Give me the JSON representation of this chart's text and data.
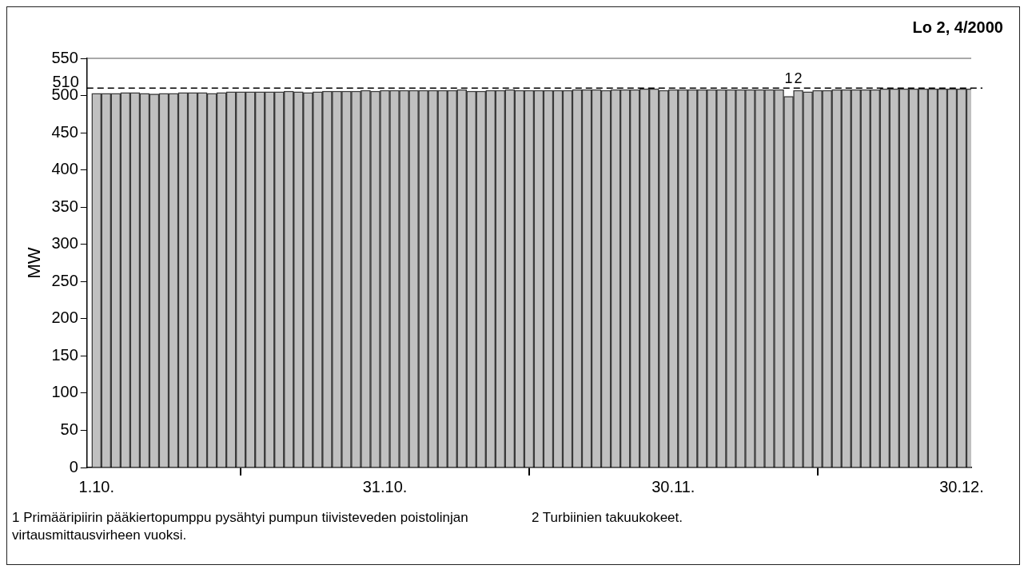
{
  "chart_data": {
    "type": "bar",
    "title": "Lo 2, 4/2000",
    "ylabel": "MW",
    "x": [
      "--10-01",
      "--10-02",
      "--10-03",
      "--10-04",
      "--10-05",
      "--10-06",
      "--10-07",
      "--10-08",
      "--10-09",
      "--10-10",
      "--10-11",
      "--10-12",
      "--10-13",
      "--10-14",
      "--10-15",
      "--10-16",
      "--10-17",
      "--10-18",
      "--10-19",
      "--10-20",
      "--10-21",
      "--10-22",
      "--10-23",
      "--10-24",
      "--10-25",
      "--10-26",
      "--10-27",
      "--10-28",
      "--10-29",
      "--10-30",
      "--10-31",
      "--11-01",
      "--11-02",
      "--11-03",
      "--11-04",
      "--11-05",
      "--11-06",
      "--11-07",
      "--11-08",
      "--11-09",
      "--11-10",
      "--11-11",
      "--11-12",
      "--11-13",
      "--11-14",
      "--11-15",
      "--11-16",
      "--11-17",
      "--11-18",
      "--11-19",
      "--11-20",
      "--11-21",
      "--11-22",
      "--11-23",
      "--11-24",
      "--11-25",
      "--11-26",
      "--11-27",
      "--11-28",
      "--11-29",
      "--11-30",
      "--12-01",
      "--12-02",
      "--12-03",
      "--12-04",
      "--12-05",
      "--12-06",
      "--12-07",
      "--12-08",
      "--12-09",
      "--12-10",
      "--12-11",
      "--12-12",
      "--12-13",
      "--12-14",
      "--12-15",
      "--12-16",
      "--12-17",
      "--12-18",
      "--12-19",
      "--12-20",
      "--12-21",
      "--12-22",
      "--12-23",
      "--12-24",
      "--12-25",
      "--12-26",
      "--12-27",
      "--12-28",
      "--12-29",
      "--12-30",
      "--12-31"
    ],
    "values": [
      503,
      503,
      503,
      504,
      504,
      503,
      502,
      503,
      503,
      504,
      504,
      504,
      503,
      504,
      505,
      505,
      505,
      505,
      505,
      505,
      506,
      505,
      504,
      505,
      506,
      506,
      506,
      506,
      507,
      506,
      507,
      507,
      507,
      507,
      507,
      507,
      507,
      507,
      508,
      506,
      506,
      507,
      507,
      508,
      507,
      507,
      507,
      507,
      507,
      507,
      508,
      508,
      508,
      507,
      508,
      508,
      508,
      509,
      509,
      507,
      508,
      508,
      508,
      508,
      508,
      508,
      508,
      508,
      508,
      508,
      508,
      508,
      499,
      507,
      505,
      507,
      507,
      508,
      508,
      508,
      508,
      508,
      509,
      509,
      509,
      509,
      509,
      509,
      509,
      509,
      509,
      509
    ],
    "color": "#c0c0c0",
    "xlim": [
      "--09-30",
      "--12-31"
    ],
    "xticks": [
      {
        "value": "--10-01",
        "label": "1.10."
      },
      {
        "value": "--10-31",
        "label": "31.10."
      },
      {
        "value": "--11-30",
        "label": "30.11."
      },
      {
        "value": "--12-30",
        "label": "30.12."
      }
    ],
    "ylim": [
      0,
      550
    ],
    "yticks": [
      0,
      50,
      100,
      150,
      200,
      250,
      300,
      350,
      400,
      450,
      500,
      550
    ],
    "ref_lines": [
      {
        "axis": "y",
        "value": 510,
        "label": "510",
        "line_style": "dashed",
        "color": "#000000"
      }
    ],
    "annotations": [
      {
        "text": "1",
        "x": "--12-12",
        "y": 512
      },
      {
        "text": "2",
        "x": "--12-13",
        "y": 512
      },
      "1   Primääripiirin pääkiertopumppu pysähtyi pumpun tiivisteveden poistolinjan virtausmittausvirheen vuoksi.",
      "2   Turbiinien takuukokeet."
    ],
    "legend": false,
    "grid": false
  }
}
